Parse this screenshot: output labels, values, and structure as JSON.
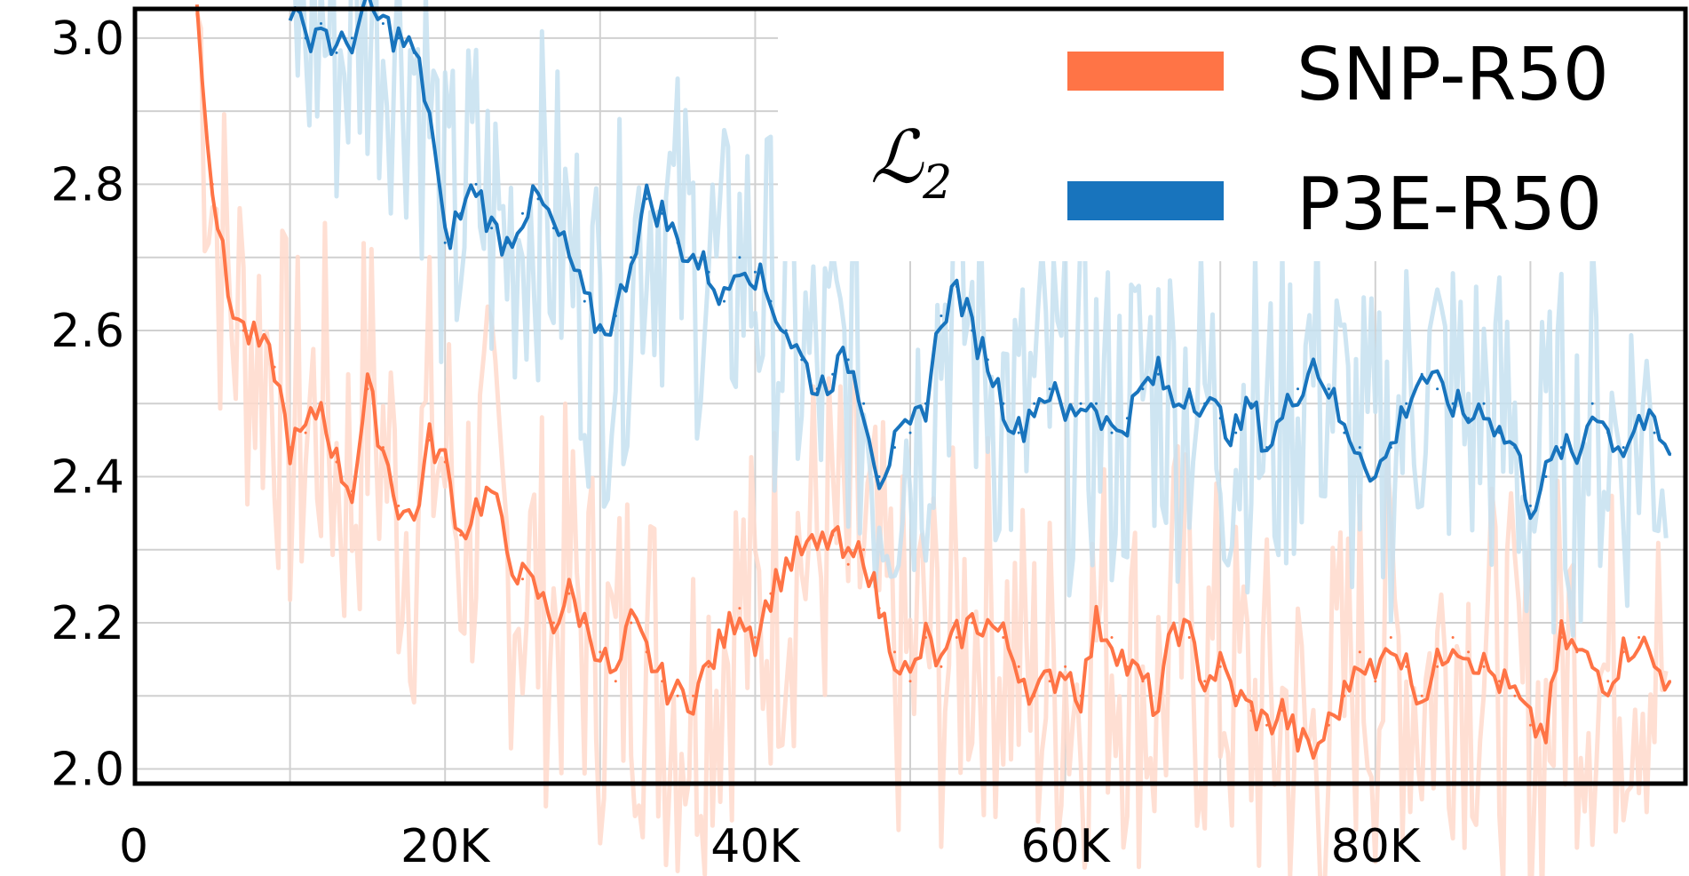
{
  "chart_data": {
    "type": "line",
    "title": "",
    "xlabel": "",
    "ylabel": "",
    "metric_label": "ℒ",
    "metric_subscript": "2",
    "xlim": [
      0,
      100000
    ],
    "ylim": [
      1.98,
      3.04
    ],
    "x_ticks": [
      0,
      20000,
      40000,
      60000,
      80000
    ],
    "x_tick_labels": [
      "0",
      "20K",
      "40K",
      "60K",
      "80K"
    ],
    "y_ticks": [
      2.0,
      2.2,
      2.4,
      2.6,
      2.8,
      3.0
    ],
    "y_tick_labels": [
      "2.0",
      "2.2",
      "2.4",
      "2.6",
      "2.8",
      "3.0"
    ],
    "grid": true,
    "legend_position": "top-right",
    "series": [
      {
        "name": "SNP-R50",
        "color": "#ff7446",
        "raw_color": "#ffd9cb",
        "x": [
          4000,
          5000,
          6000,
          7000,
          8000,
          9000,
          10000,
          11000,
          12000,
          13000,
          14000,
          15000,
          16000,
          17000,
          18000,
          19000,
          20000,
          21000,
          22000,
          23000,
          24000,
          25000,
          26000,
          27000,
          28000,
          29000,
          30000,
          31000,
          32000,
          33000,
          34000,
          35000,
          36000,
          37000,
          38000,
          39000,
          40000,
          41000,
          42000,
          43000,
          44000,
          45000,
          46000,
          47000,
          48000,
          49000,
          50000,
          51000,
          52000,
          53000,
          54000,
          55000,
          56000,
          57000,
          58000,
          59000,
          60000,
          61000,
          62000,
          63000,
          64000,
          65000,
          66000,
          67000,
          68000,
          69000,
          70000,
          71000,
          72000,
          73000,
          74000,
          75000,
          76000,
          77000,
          78000,
          79000,
          80000,
          81000,
          82000,
          83000,
          84000,
          85000,
          86000,
          87000,
          88000,
          89000,
          90000,
          91000,
          92000,
          93000,
          94000,
          95000,
          96000,
          97000,
          98000,
          99000
        ],
        "values": [
          3.04,
          2.8,
          2.65,
          2.6,
          2.58,
          2.55,
          2.44,
          2.46,
          2.5,
          2.42,
          2.38,
          2.52,
          2.44,
          2.36,
          2.34,
          2.45,
          2.42,
          2.32,
          2.36,
          2.38,
          2.3,
          2.26,
          2.24,
          2.2,
          2.24,
          2.2,
          2.16,
          2.12,
          2.2,
          2.16,
          2.12,
          2.1,
          2.1,
          2.14,
          2.18,
          2.22,
          2.18,
          2.24,
          2.28,
          2.3,
          2.3,
          2.32,
          2.28,
          2.3,
          2.22,
          2.16,
          2.12,
          2.18,
          2.14,
          2.18,
          2.2,
          2.2,
          2.18,
          2.14,
          2.1,
          2.12,
          2.14,
          2.1,
          2.2,
          2.18,
          2.14,
          2.12,
          2.08,
          2.2,
          2.18,
          2.12,
          2.14,
          2.1,
          2.08,
          2.06,
          2.08,
          2.04,
          2.02,
          2.06,
          2.1,
          2.16,
          2.12,
          2.18,
          2.14,
          2.1,
          2.14,
          2.18,
          2.16,
          2.14,
          2.12,
          2.1,
          2.06,
          2.05,
          2.18,
          2.16,
          2.14,
          2.12,
          2.16,
          2.18,
          2.14,
          2.12
        ]
      },
      {
        "name": "P3E-R50",
        "color": "#1874bd",
        "raw_color": "#c6e0f0",
        "x": [
          10000,
          11000,
          12000,
          13000,
          14000,
          15000,
          16000,
          17000,
          18000,
          19000,
          20000,
          21000,
          22000,
          23000,
          24000,
          25000,
          26000,
          27000,
          28000,
          29000,
          30000,
          31000,
          32000,
          33000,
          34000,
          35000,
          36000,
          37000,
          38000,
          39000,
          40000,
          41000,
          42000,
          43000,
          44000,
          45000,
          46000,
          47000,
          48000,
          49000,
          50000,
          51000,
          52000,
          53000,
          54000,
          55000,
          56000,
          57000,
          58000,
          59000,
          60000,
          61000,
          62000,
          63000,
          64000,
          65000,
          66000,
          67000,
          68000,
          69000,
          70000,
          71000,
          72000,
          73000,
          74000,
          75000,
          76000,
          77000,
          78000,
          79000,
          80000,
          81000,
          82000,
          83000,
          84000,
          85000,
          86000,
          87000,
          88000,
          89000,
          90000,
          91000,
          92000,
          93000,
          94000,
          95000,
          96000,
          97000,
          98000,
          99000
        ],
        "values": [
          3.04,
          3.0,
          3.02,
          2.98,
          3.0,
          3.04,
          3.02,
          3.0,
          2.98,
          2.9,
          2.72,
          2.76,
          2.8,
          2.74,
          2.72,
          2.76,
          2.78,
          2.74,
          2.7,
          2.64,
          2.6,
          2.62,
          2.7,
          2.78,
          2.76,
          2.72,
          2.7,
          2.68,
          2.64,
          2.7,
          2.68,
          2.64,
          2.6,
          2.56,
          2.52,
          2.54,
          2.56,
          2.5,
          2.4,
          2.44,
          2.46,
          2.5,
          2.62,
          2.66,
          2.6,
          2.56,
          2.5,
          2.46,
          2.5,
          2.52,
          2.48,
          2.5,
          2.5,
          2.46,
          2.48,
          2.52,
          2.54,
          2.5,
          2.52,
          2.5,
          2.48,
          2.46,
          2.5,
          2.44,
          2.48,
          2.52,
          2.56,
          2.52,
          2.46,
          2.44,
          2.4,
          2.44,
          2.5,
          2.54,
          2.52,
          2.5,
          2.48,
          2.5,
          2.46,
          2.44,
          2.36,
          2.4,
          2.44,
          2.42,
          2.5,
          2.46,
          2.44,
          2.48,
          2.46,
          2.43
        ]
      }
    ]
  }
}
